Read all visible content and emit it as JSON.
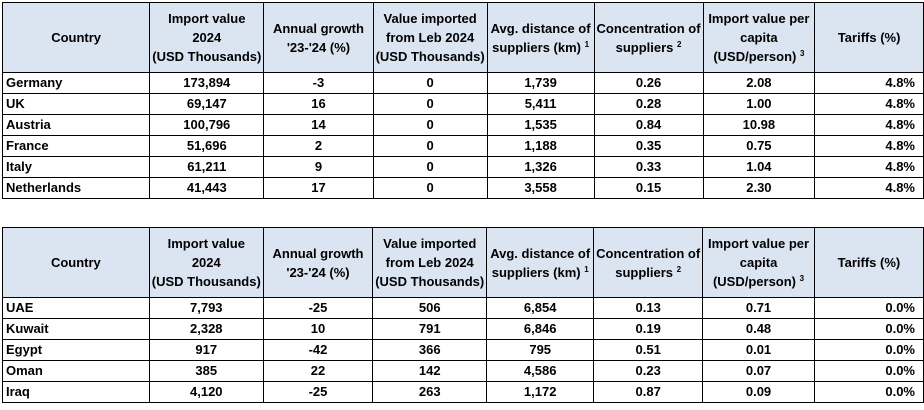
{
  "headers": [
    {
      "lines": [
        "Country"
      ],
      "sup": ""
    },
    {
      "lines": [
        "Import value",
        "2024",
        "(USD Thousands)"
      ],
      "sup": ""
    },
    {
      "lines": [
        "Annual growth",
        "'23-'24 (%)"
      ],
      "sup": ""
    },
    {
      "lines": [
        "Value imported",
        "from Leb 2024",
        "(USD Thousands)"
      ],
      "sup": ""
    },
    {
      "lines": [
        "Avg. distance of",
        "suppliers (km)"
      ],
      "sup": "1"
    },
    {
      "lines": [
        "Concentration of",
        "suppliers"
      ],
      "sup": "2"
    },
    {
      "lines": [
        "Import value per",
        "capita",
        "(USD/person)"
      ],
      "sup": "3"
    },
    {
      "lines": [
        "Tariffs (%)"
      ],
      "sup": ""
    }
  ],
  "table1": {
    "rows": [
      [
        "Germany",
        "173,894",
        "-3",
        "0",
        "1,739",
        "0.26",
        "2.08",
        "4.8%"
      ],
      [
        "UK",
        "69,147",
        "16",
        "0",
        "5,411",
        "0.28",
        "1.00",
        "4.8%"
      ],
      [
        "Austria",
        "100,796",
        "14",
        "0",
        "1,535",
        "0.84",
        "10.98",
        "4.8%"
      ],
      [
        "France",
        "51,696",
        "2",
        "0",
        "1,188",
        "0.35",
        "0.75",
        "4.8%"
      ],
      [
        "Italy",
        "61,211",
        "9",
        "0",
        "1,326",
        "0.33",
        "1.04",
        "4.8%"
      ],
      [
        "Netherlands",
        "41,443",
        "17",
        "0",
        "3,558",
        "0.15",
        "2.30",
        "4.8%"
      ]
    ]
  },
  "table2": {
    "rows": [
      [
        "UAE",
        "7,793",
        "-25",
        "506",
        "6,854",
        "0.13",
        "0.71",
        "0.0%"
      ],
      [
        "Kuwait",
        "2,328",
        "10",
        "791",
        "6,846",
        "0.19",
        "0.48",
        "0.0%"
      ],
      [
        "Egypt",
        "917",
        "-42",
        "366",
        "795",
        "0.51",
        "0.01",
        "0.0%"
      ],
      [
        "Oman",
        "385",
        "22",
        "142",
        "4,586",
        "0.23",
        "0.07",
        "0.0%"
      ],
      [
        "Iraq",
        "4,120",
        "-25",
        "263",
        "1,172",
        "0.87",
        "0.09",
        "0.0%"
      ]
    ]
  }
}
